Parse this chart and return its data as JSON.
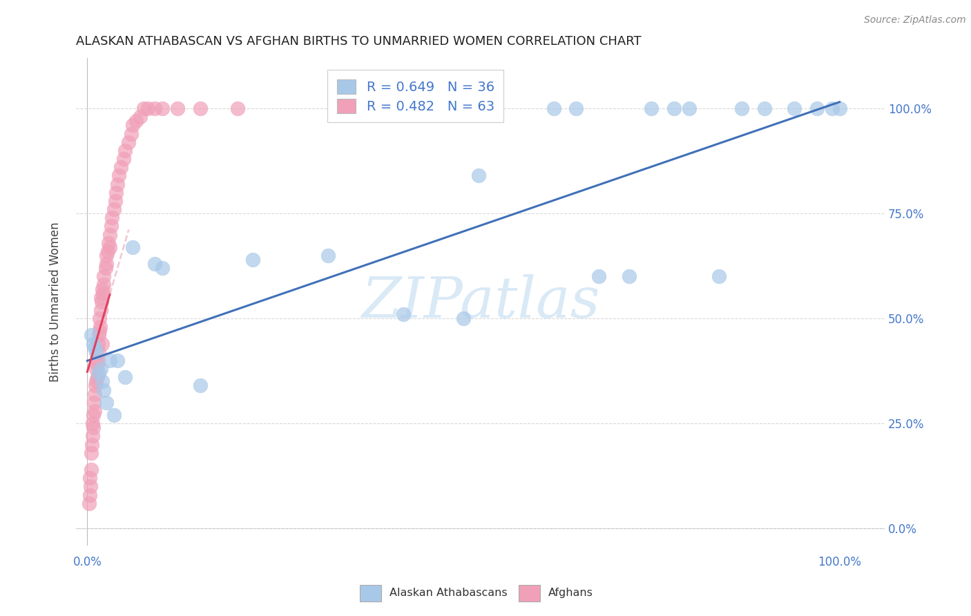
{
  "title": "ALASKAN ATHABASCAN VS AFGHAN BIRTHS TO UNMARRIED WOMEN CORRELATION CHART",
  "source": "Source: ZipAtlas.com",
  "ylabel": "Births to Unmarried Women",
  "blue_color": "#a8c8e8",
  "pink_color": "#f0a0b8",
  "blue_line_color": "#4070b8",
  "pink_line_color": "#e04060",
  "pink_dash_color": "#e8a0b0",
  "watermark_color": "#d0e4f4",
  "grid_color": "#d8d8d8",
  "background_color": "#ffffff",
  "tick_label_color": "#4477cc",
  "legend_label_color": "#4477cc",
  "title_color": "#222222",
  "ylabel_color": "#444444",
  "source_color": "#888888",
  "legend_r1": "R = 0.649   N = 36",
  "legend_r2": "R = 0.482   N = 63",
  "blue_x": [
    0.5,
    0.8,
    1.0,
    1.2,
    1.5,
    1.8,
    2.0,
    2.2,
    2.5,
    3.0,
    3.5,
    4.0,
    5.0,
    6.0,
    9.0,
    10.0,
    15.0,
    22.0,
    32.0,
    42.0,
    50.0,
    52.0,
    62.0,
    65.0,
    68.0,
    72.0,
    75.0,
    78.0,
    80.0,
    84.0,
    87.0,
    90.0,
    94.0,
    97.0,
    99.0,
    100.0
  ],
  "blue_y": [
    0.46,
    0.44,
    0.43,
    0.42,
    0.37,
    0.38,
    0.35,
    0.33,
    0.3,
    0.4,
    0.27,
    0.4,
    0.36,
    0.67,
    0.63,
    0.62,
    0.34,
    0.64,
    0.65,
    0.51,
    0.5,
    0.84,
    1.0,
    1.0,
    0.6,
    0.6,
    1.0,
    1.0,
    1.0,
    0.6,
    1.0,
    1.0,
    1.0,
    1.0,
    1.0,
    1.0
  ],
  "pink_x": [
    0.2,
    0.3,
    0.3,
    0.4,
    0.5,
    0.5,
    0.6,
    0.7,
    0.7,
    0.8,
    0.8,
    0.9,
    1.0,
    1.0,
    1.1,
    1.2,
    1.2,
    1.3,
    1.3,
    1.4,
    1.4,
    1.5,
    1.5,
    1.6,
    1.6,
    1.7,
    1.8,
    1.8,
    1.9,
    2.0,
    2.0,
    2.1,
    2.2,
    2.2,
    2.4,
    2.5,
    2.5,
    2.7,
    2.8,
    3.0,
    3.0,
    3.2,
    3.3,
    3.5,
    3.7,
    3.8,
    4.0,
    4.2,
    4.5,
    4.8,
    5.0,
    5.5,
    5.8,
    6.0,
    6.5,
    7.0,
    7.5,
    8.0,
    9.0,
    10.0,
    12.0,
    15.0,
    20.0
  ],
  "pink_y": [
    0.06,
    0.08,
    0.12,
    0.1,
    0.14,
    0.18,
    0.2,
    0.22,
    0.25,
    0.24,
    0.27,
    0.3,
    0.28,
    0.32,
    0.34,
    0.35,
    0.38,
    0.36,
    0.39,
    0.4,
    0.44,
    0.42,
    0.46,
    0.47,
    0.5,
    0.48,
    0.52,
    0.55,
    0.54,
    0.44,
    0.57,
    0.56,
    0.58,
    0.6,
    0.62,
    0.63,
    0.65,
    0.66,
    0.68,
    0.67,
    0.7,
    0.72,
    0.74,
    0.76,
    0.78,
    0.8,
    0.82,
    0.84,
    0.86,
    0.88,
    0.9,
    0.92,
    0.94,
    0.96,
    0.97,
    0.98,
    1.0,
    1.0,
    1.0,
    1.0,
    1.0,
    1.0,
    1.0
  ],
  "xlim": [
    -1.5,
    106
  ],
  "ylim": [
    -0.04,
    1.12
  ],
  "xticks": [
    0,
    20,
    40,
    60,
    80,
    100
  ],
  "yticks": [
    0.0,
    0.25,
    0.5,
    0.75,
    1.0
  ]
}
